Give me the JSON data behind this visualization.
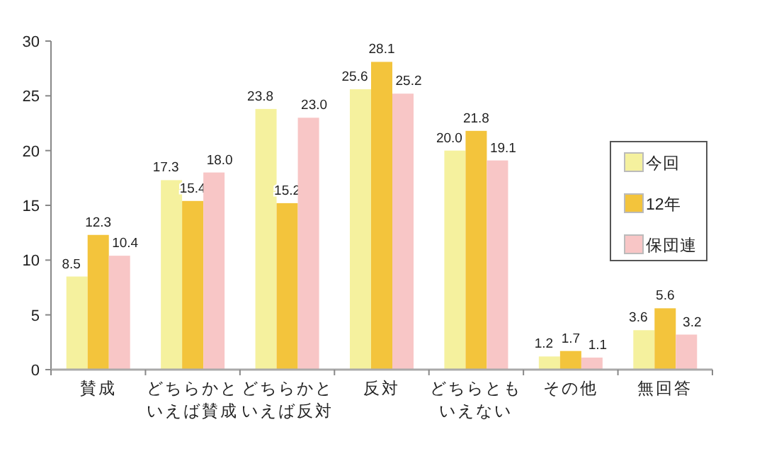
{
  "chart_data": {
    "type": "bar",
    "categories": [
      "賛成",
      "どちらかといえば賛成",
      "どちらかといえば反対",
      "反対",
      "どちらともいえない",
      "その他",
      "無回答"
    ],
    "series": [
      {
        "name": "今回",
        "color": "#f5f19e",
        "values": [
          8.5,
          17.3,
          23.8,
          25.6,
          20.0,
          1.2,
          3.6
        ],
        "value_labels": [
          "8.5",
          "17.3",
          "23.8",
          "25.6",
          "20.0",
          "1.2",
          "3.6"
        ]
      },
      {
        "name": "12年",
        "color": "#f3c43c",
        "values": [
          12.3,
          15.4,
          15.2,
          28.1,
          21.8,
          1.7,
          5.6
        ],
        "value_labels": [
          "12.3",
          "15.4",
          "15.2",
          "28.1",
          "21.8",
          "1.7",
          "5.6"
        ]
      },
      {
        "name": "保団連",
        "color": "#f8c6c6",
        "values": [
          10.4,
          18.0,
          23.0,
          25.2,
          19.1,
          1.1,
          3.2
        ],
        "value_labels": [
          "10.4",
          "18.0",
          "23.0",
          "25.2",
          "19.1",
          "1.1",
          "3.2"
        ]
      }
    ],
    "ylim": [
      0,
      30
    ],
    "yticks": [
      0,
      5,
      10,
      15,
      20,
      25,
      30
    ],
    "legend": "right",
    "grid": false
  }
}
